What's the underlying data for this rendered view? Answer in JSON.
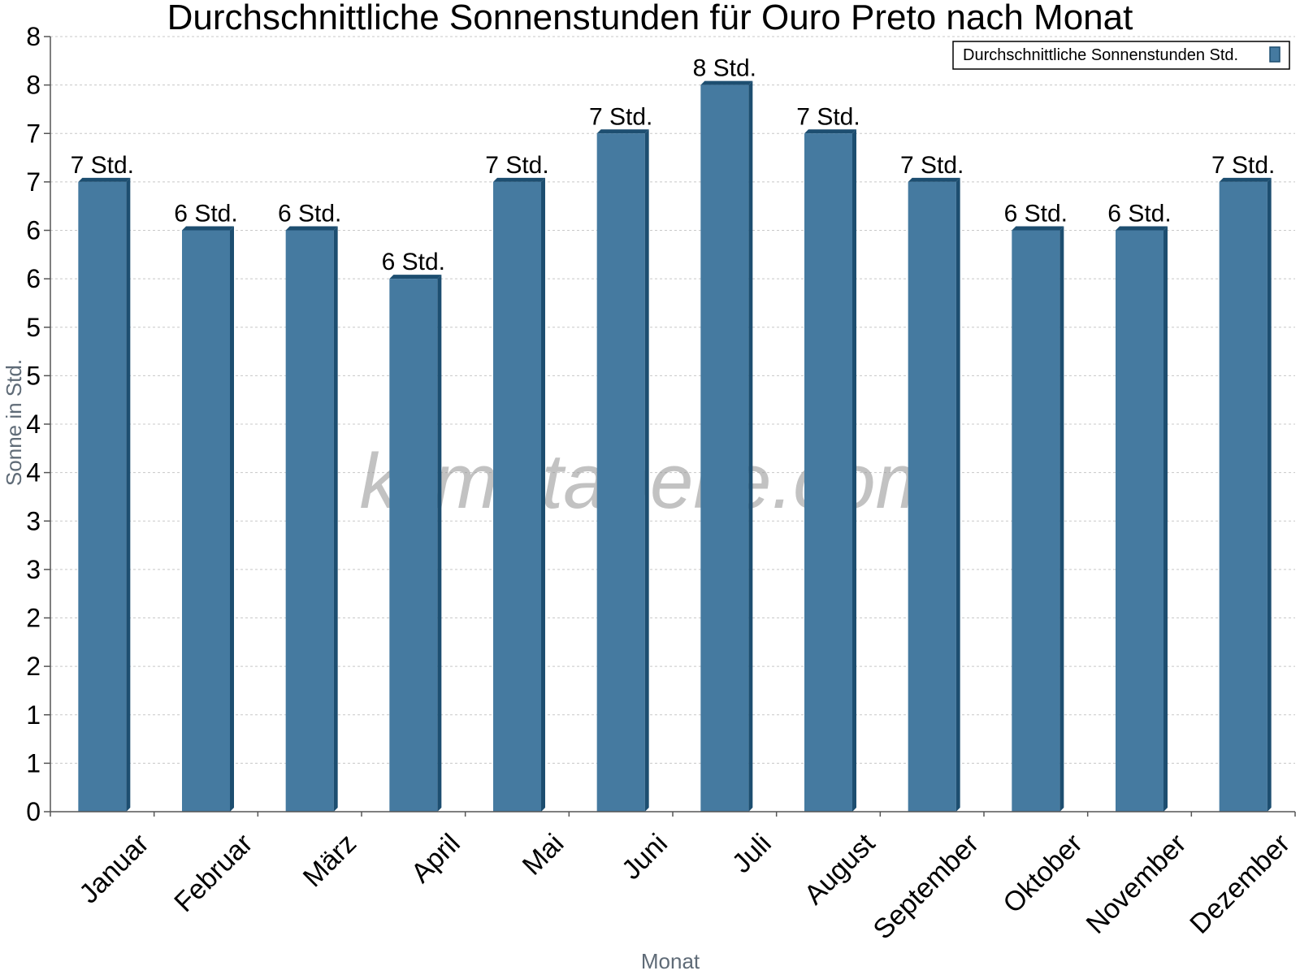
{
  "chart_data": {
    "type": "bar",
    "title": "Durchschnittliche Sonnenstunden für Ouro Preto nach Monat",
    "xlabel": "Monat",
    "ylabel": "Sonne in Std.",
    "ylim": [
      0,
      8
    ],
    "ytick_labels": [
      "0",
      "1",
      "1",
      "2",
      "2",
      "3",
      "3",
      "4",
      "4",
      "5",
      "5",
      "6",
      "6",
      "7",
      "7",
      "8",
      "8"
    ],
    "grid": true,
    "legend_position": "top-right",
    "categories": [
      "Januar",
      "Februar",
      "März",
      "April",
      "Mai",
      "Juni",
      "Juli",
      "August",
      "September",
      "Oktober",
      "November",
      "Dezember"
    ],
    "series": [
      {
        "name": "Durchschnittliche Sonnenstunden Std.",
        "color": "#457aa0",
        "values": [
          6.5,
          6.0,
          6.0,
          5.5,
          6.5,
          7.0,
          7.5,
          7.0,
          6.5,
          6.0,
          6.0,
          6.5
        ],
        "data_labels": [
          "7 Std.",
          "6 Std.",
          "6 Std.",
          "6 Std.",
          "7 Std.",
          "7 Std.",
          "8 Std.",
          "7 Std.",
          "7 Std.",
          "6 Std.",
          "6 Std.",
          "7 Std."
        ]
      }
    ],
    "watermark": "klimatabelle.com"
  }
}
